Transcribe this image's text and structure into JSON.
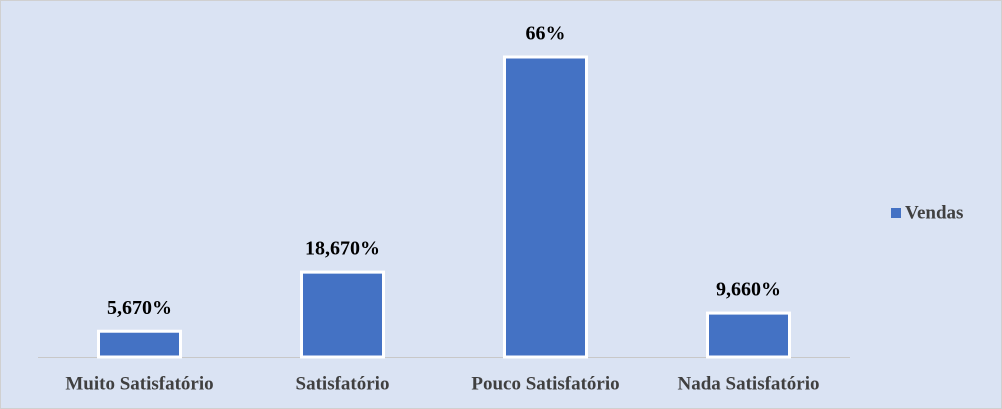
{
  "chart_data": {
    "type": "bar",
    "categories": [
      "Muito Satisfatório",
      "Satisfatório",
      "Pouco Satisfatório",
      "Nada Satisfatório"
    ],
    "series": [
      {
        "name": "Vendas",
        "color": "#4472c4",
        "values": [
          5.67,
          18.67,
          66,
          9.66
        ],
        "value_labels": [
          "5,670%",
          "18,670%",
          "66%",
          "9,660%"
        ]
      }
    ],
    "legend": "right"
  }
}
